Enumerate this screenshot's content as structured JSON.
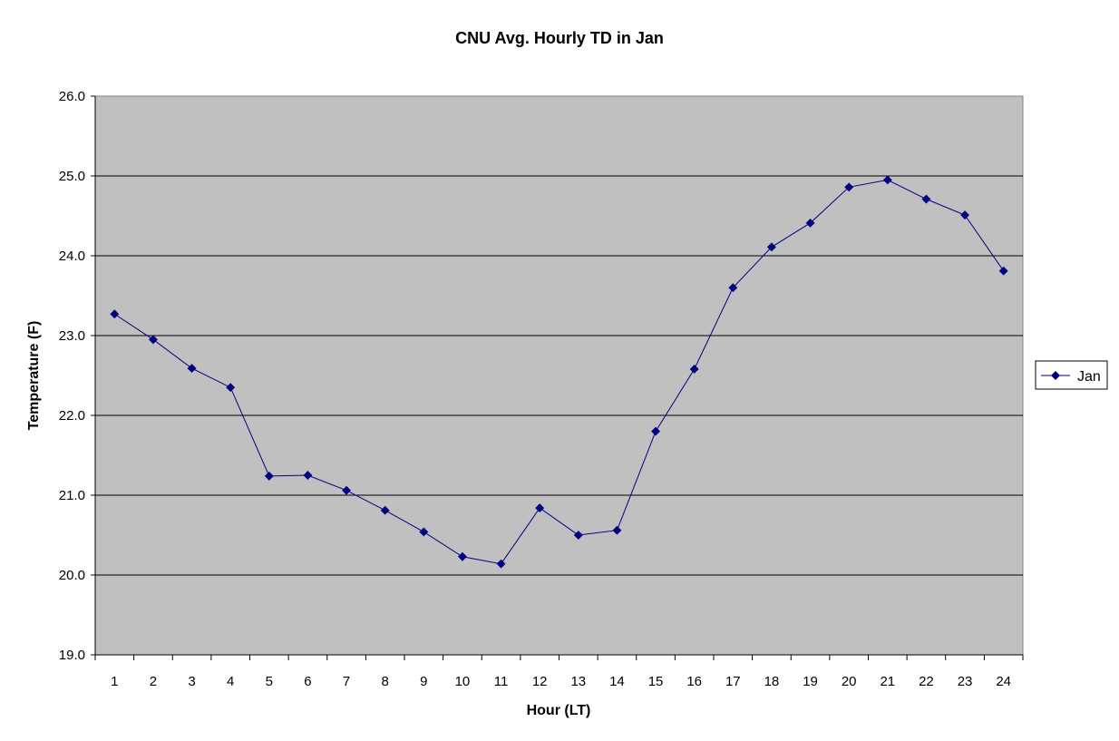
{
  "chart_data": {
    "type": "line",
    "title": "CNU Avg. Hourly TD in Jan",
    "xlabel": "Hour (LT)",
    "ylabel": "Temperature (F)",
    "categories": [
      "1",
      "2",
      "3",
      "4",
      "5",
      "6",
      "7",
      "8",
      "9",
      "10",
      "11",
      "12",
      "13",
      "14",
      "15",
      "16",
      "17",
      "18",
      "19",
      "20",
      "21",
      "22",
      "23",
      "24"
    ],
    "ylim": [
      19.0,
      26.0
    ],
    "yticks": [
      "19.0",
      "20.0",
      "21.0",
      "22.0",
      "23.0",
      "24.0",
      "25.0",
      "26.0"
    ],
    "grid": "horizontal",
    "legend_position": "right",
    "series": [
      {
        "name": "Jan",
        "values": [
          23.27,
          22.95,
          22.59,
          22.35,
          21.24,
          21.25,
          21.06,
          20.81,
          20.54,
          20.23,
          20.14,
          20.84,
          20.5,
          20.56,
          21.8,
          22.58,
          23.6,
          24.11,
          24.41,
          24.86,
          24.95,
          24.71,
          24.51,
          23.81
        ],
        "color": "#000080"
      }
    ],
    "plot_background": "#C0C0C0"
  }
}
